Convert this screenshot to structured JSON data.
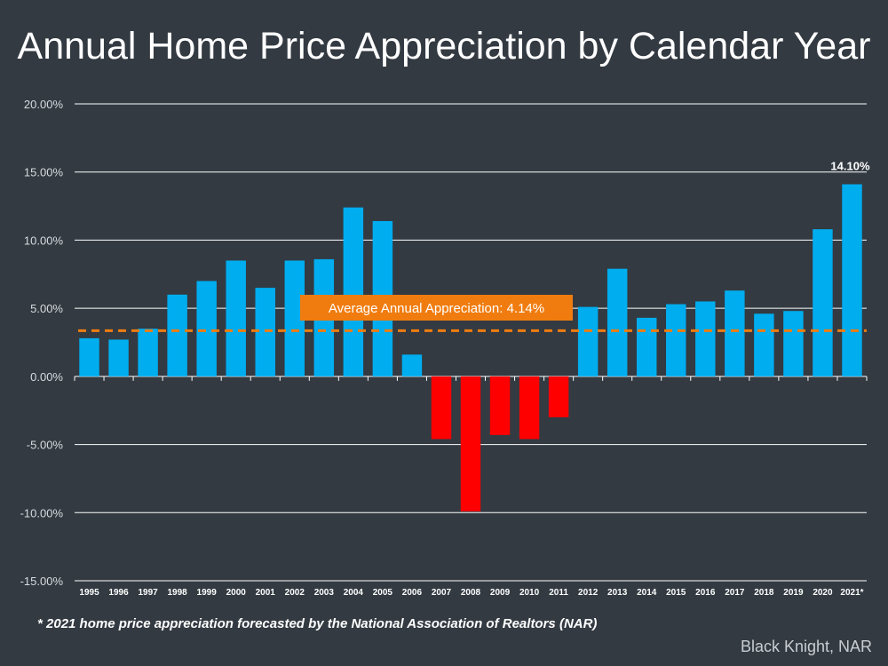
{
  "title": "Annual Home Price Appreciation by Calendar Year",
  "footnote": "* 2021 home price appreciation forecasted by the National Association of Realtors (NAR)",
  "source": "Black Knight, NAR",
  "colors": {
    "positive": "#00adef",
    "negative": "#ff0000",
    "average": "#f07c0f",
    "grid": "#ffffff",
    "background": "#333a42"
  },
  "chart_data": {
    "type": "bar",
    "title": "Annual Home Price Appreciation by Calendar Year",
    "categories": [
      "1995",
      "1996",
      "1997",
      "1998",
      "1999",
      "2000",
      "2001",
      "2002",
      "2003",
      "2004",
      "2005",
      "2006",
      "2007",
      "2008",
      "2009",
      "2010",
      "2011",
      "2012",
      "2013",
      "2014",
      "2015",
      "2016",
      "2017",
      "2018",
      "2019",
      "2020",
      "2021*"
    ],
    "values": [
      2.8,
      2.7,
      3.5,
      6.0,
      7.0,
      8.5,
      6.5,
      8.5,
      8.6,
      12.4,
      11.4,
      1.6,
      -4.6,
      -9.9,
      -4.3,
      -4.6,
      -3.0,
      5.1,
      7.9,
      4.3,
      5.3,
      5.5,
      6.3,
      4.6,
      4.8,
      10.8,
      14.1
    ],
    "ylim": [
      -15,
      20
    ],
    "yticks": [
      "-15.00%",
      "-10.00%",
      "-5.00%",
      "0.00%",
      "5.00%",
      "10.00%",
      "15.00%",
      "20.00%"
    ],
    "ytick_values": [
      -15,
      -10,
      -5,
      0,
      5,
      10,
      15,
      20
    ],
    "grid": true,
    "data_labels": [
      {
        "category": "2021*",
        "text": "14.10%"
      }
    ],
    "average": {
      "value": 4.14,
      "label": "Average Annual Appreciation: 4.14%"
    }
  }
}
